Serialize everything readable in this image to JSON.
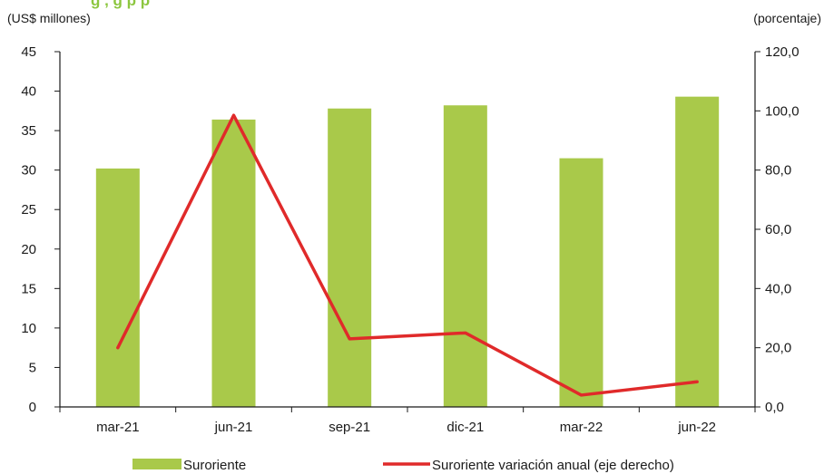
{
  "chart_data": {
    "type": "bar+line",
    "title_partial": "g                          , g     p      p",
    "left_axis_unit": "(US$ millones)",
    "right_axis_unit": "(porcentaje)",
    "categories": [
      "mar-21",
      "jun-21",
      "sep-21",
      "dic-21",
      "mar-22",
      "jun-22"
    ],
    "left_ylim": [
      0,
      45
    ],
    "left_ticks": [
      "0",
      "5",
      "10",
      "15",
      "20",
      "25",
      "30",
      "35",
      "40",
      "45"
    ],
    "right_ylim": [
      0,
      120
    ],
    "right_ticks": [
      "0,0",
      "20,0",
      "40,0",
      "60,0",
      "80,0",
      "100,0",
      "120,0"
    ],
    "series": [
      {
        "name": "Suroriente",
        "type": "bar",
        "axis": "left",
        "color": "#a9c94a",
        "values": [
          30.2,
          36.4,
          37.8,
          38.2,
          31.5,
          39.3
        ]
      },
      {
        "name": "Suroriente variación anual (eje derecho)",
        "type": "line",
        "axis": "right",
        "color": "#e02a2a",
        "values": [
          20.0,
          98.5,
          23.0,
          25.0,
          4.0,
          8.5
        ]
      }
    ],
    "grid": false,
    "legend_position": "bottom"
  }
}
